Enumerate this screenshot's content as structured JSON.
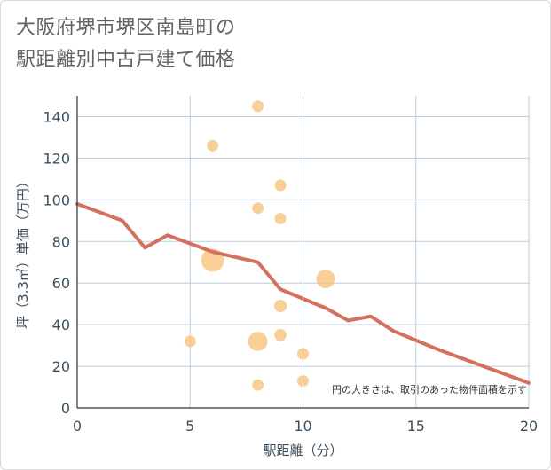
{
  "title": {
    "line1": "大阪府堺市堺区南島町の",
    "line2": "駅距離別中古戸建て価格"
  },
  "colors": {
    "grid": "#b8cde0",
    "axis": "#333333",
    "line": "#d4705c",
    "bubble": "#f5c27a"
  },
  "chart_data": {
    "type": "scatter",
    "title": "大阪府堺市堺区南島町の駅距離別中古戸建て価格",
    "xlabel": "駅距離（分）",
    "ylabel": "坪（3.3㎡）単価（万円）",
    "xlim": [
      0,
      20
    ],
    "ylim": [
      0,
      150
    ],
    "xticks": [
      0,
      5,
      10,
      15,
      20
    ],
    "yticks": [
      0,
      20,
      40,
      60,
      80,
      100,
      120,
      140
    ],
    "grid": true,
    "annotation": "円の大きさは、取引のあった物件面積を示す",
    "bubbles": [
      {
        "x": 5,
        "y": 32,
        "size": 1
      },
      {
        "x": 6,
        "y": 126,
        "size": 1
      },
      {
        "x": 6,
        "y": 71,
        "size": 4
      },
      {
        "x": 8,
        "y": 145,
        "size": 1
      },
      {
        "x": 8,
        "y": 96,
        "size": 1
      },
      {
        "x": 8,
        "y": 32,
        "size": 2.8
      },
      {
        "x": 8,
        "y": 11,
        "size": 1
      },
      {
        "x": 9,
        "y": 107,
        "size": 1
      },
      {
        "x": 9,
        "y": 91,
        "size": 1
      },
      {
        "x": 9,
        "y": 49,
        "size": 1.2
      },
      {
        "x": 9,
        "y": 35,
        "size": 1.1
      },
      {
        "x": 10,
        "y": 26,
        "size": 1
      },
      {
        "x": 10,
        "y": 13,
        "size": 1
      },
      {
        "x": 11,
        "y": 62,
        "size": 2.6
      }
    ],
    "series": [
      {
        "name": "trend",
        "type": "line",
        "x": [
          0,
          2,
          3,
          4,
          6,
          8,
          9,
          11,
          12,
          13,
          14,
          16,
          18,
          20
        ],
        "y": [
          98,
          90,
          77,
          83,
          75,
          70,
          57,
          48,
          42,
          44,
          37,
          28,
          20,
          12
        ]
      }
    ]
  }
}
